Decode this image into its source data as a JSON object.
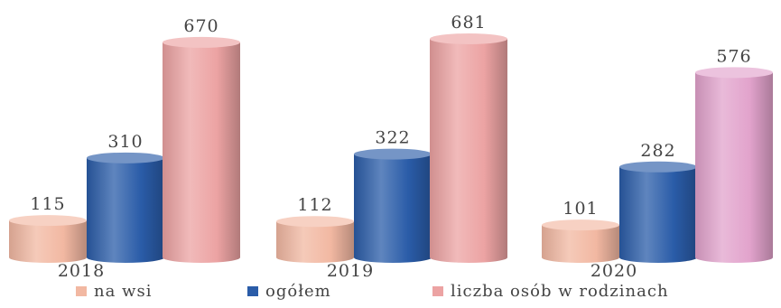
{
  "chart_data": {
    "type": "bar",
    "style": "3d-cylinder",
    "categories": [
      "2018",
      "2019",
      "2020"
    ],
    "series": [
      {
        "name": "na wsi",
        "values": [
          115,
          112,
          101
        ],
        "color": "#f2b8a2"
      },
      {
        "name": "ogółem",
        "values": [
          310,
          322,
          282
        ],
        "color": "#2a5ca8"
      },
      {
        "name": "liczba osób w rodzinach",
        "values": [
          670,
          681,
          576
        ],
        "colors": [
          "#eca3a3",
          "#eca3a3",
          "#e2a3cc"
        ]
      }
    ],
    "legend": {
      "placement": "bottom"
    },
    "grid": false
  }
}
